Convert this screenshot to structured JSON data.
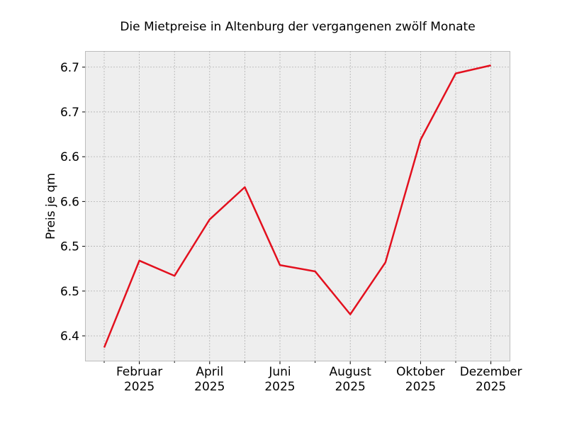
{
  "chart_data": {
    "type": "line",
    "title": "Die Mietpreise in Altenburg der vergangenen zwölf Monate",
    "xlabel": "",
    "ylabel": "Preis je qm",
    "x": [
      "2025-01",
      "2025-02",
      "2025-03",
      "2025-04",
      "2025-05",
      "2025-06",
      "2025-07",
      "2025-08",
      "2025-09",
      "2025-10",
      "2025-11",
      "2025-12"
    ],
    "series": [
      {
        "values": [
          6.387,
          6.484,
          6.467,
          6.53,
          6.566,
          6.479,
          6.472,
          6.424,
          6.482,
          6.619,
          6.693,
          6.702
        ],
        "color": "#e3101e"
      }
    ],
    "ylim": [
      6.3715,
      6.718
    ],
    "xlim": [
      "2024-12-15",
      "2025-12-25"
    ],
    "yticks": [
      6.4,
      6.45,
      6.5,
      6.55,
      6.6,
      6.65,
      6.7
    ],
    "ytick_labels": [
      "6.4",
      "6.5",
      "6.5",
      "6.6",
      "6.6",
      "6.7",
      "6.7"
    ],
    "xticks": [
      {
        "month": "2025-02",
        "label1": "Februar",
        "label2": "2025"
      },
      {
        "month": "2025-04",
        "label1": "April",
        "label2": "2025"
      },
      {
        "month": "2025-06",
        "label1": "Juni",
        "label2": "2025"
      },
      {
        "month": "2025-08",
        "label1": "August",
        "label2": "2025"
      },
      {
        "month": "2025-10",
        "label1": "Oktober",
        "label2": "2025"
      },
      {
        "month": "2025-12",
        "label1": "Dezember",
        "label2": "2025"
      }
    ],
    "grid": true,
    "background": "#eeeeee"
  }
}
